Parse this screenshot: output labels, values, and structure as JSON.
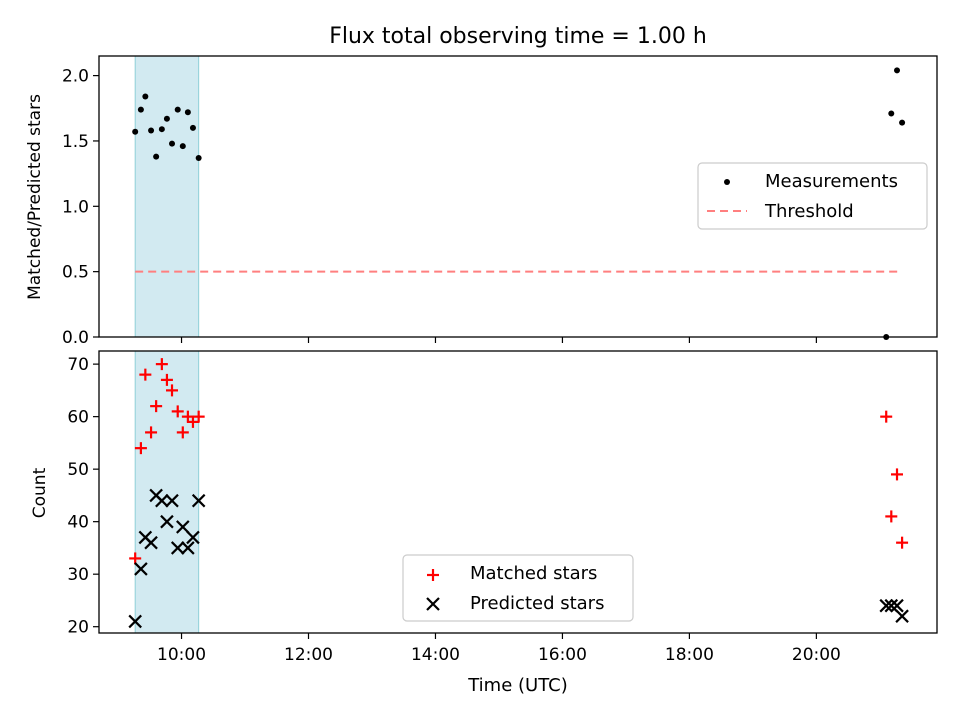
{
  "figure": {
    "title": "Flux total observing time = 1.00 h",
    "xlabel": "Time (UTC)",
    "x_ticks": [
      "10:00",
      "12:00",
      "14:00",
      "16:00",
      "18:00",
      "20:00"
    ],
    "x_tick_hours": [
      10,
      12,
      14,
      16,
      18,
      20
    ]
  },
  "chart_data": [
    {
      "type": "scatter",
      "panel": "top",
      "ylabel": "Matched/Predicted stars",
      "xlim_hours": [
        8.7,
        21.9
      ],
      "ylim": [
        0,
        2.15
      ],
      "y_ticks": [
        "0.0",
        "0.5",
        "1.0",
        "1.5",
        "2.0"
      ],
      "y_tick_values": [
        0.0,
        0.5,
        1.0,
        1.5,
        2.0
      ],
      "shaded_span_hours": [
        9.27,
        10.27
      ],
      "shaded_color": "#add8e6",
      "legend_position": "center-right",
      "series": [
        {
          "name": "Measurements",
          "marker": "dot",
          "color": "#000000",
          "x_hours": [
            9.27,
            9.36,
            9.43,
            9.52,
            9.6,
            9.69,
            9.77,
            9.85,
            9.94,
            10.02,
            10.1,
            10.18,
            10.27,
            21.1,
            21.18,
            21.27,
            21.35
          ],
          "values": [
            1.57,
            1.74,
            1.84,
            1.58,
            1.38,
            1.59,
            1.67,
            1.48,
            1.74,
            1.46,
            1.72,
            1.6,
            1.37,
            0.0,
            1.71,
            2.04,
            1.64
          ]
        },
        {
          "name": "Threshold",
          "marker": "dashed-line",
          "color": "#ff7f7f",
          "x_hours": [
            9.27,
            21.3
          ],
          "values": [
            0.5,
            0.5
          ]
        }
      ]
    },
    {
      "type": "scatter",
      "panel": "bottom",
      "ylabel": "Count",
      "xlim_hours": [
        8.7,
        21.9
      ],
      "ylim": [
        18.8,
        72.5
      ],
      "y_ticks": [
        "20",
        "30",
        "40",
        "50",
        "60",
        "70"
      ],
      "y_tick_values": [
        20,
        30,
        40,
        50,
        60,
        70
      ],
      "shaded_span_hours": [
        9.27,
        10.27
      ],
      "shaded_color": "#add8e6",
      "legend_position": "lower-center",
      "series": [
        {
          "name": "Matched stars",
          "marker": "plus",
          "color": "#ff0000",
          "x_hours": [
            9.27,
            9.36,
            9.43,
            9.52,
            9.6,
            9.69,
            9.77,
            9.85,
            9.94,
            10.02,
            10.1,
            10.18,
            10.27,
            21.1,
            21.18,
            21.27,
            21.35
          ],
          "values": [
            33,
            54,
            68,
            57,
            62,
            70,
            67,
            65,
            61,
            57,
            60,
            59,
            60,
            60,
            41,
            49,
            36
          ]
        },
        {
          "name": "Predicted stars",
          "marker": "x",
          "color": "#000000",
          "x_hours": [
            9.27,
            9.36,
            9.43,
            9.52,
            9.6,
            9.69,
            9.77,
            9.85,
            9.94,
            10.02,
            10.1,
            10.18,
            10.27,
            21.1,
            21.18,
            21.27,
            21.35
          ],
          "values": [
            21,
            31,
            37,
            36,
            45,
            44,
            40,
            44,
            35,
            39,
            35,
            37,
            44,
            24,
            24,
            24,
            22
          ]
        }
      ]
    }
  ]
}
